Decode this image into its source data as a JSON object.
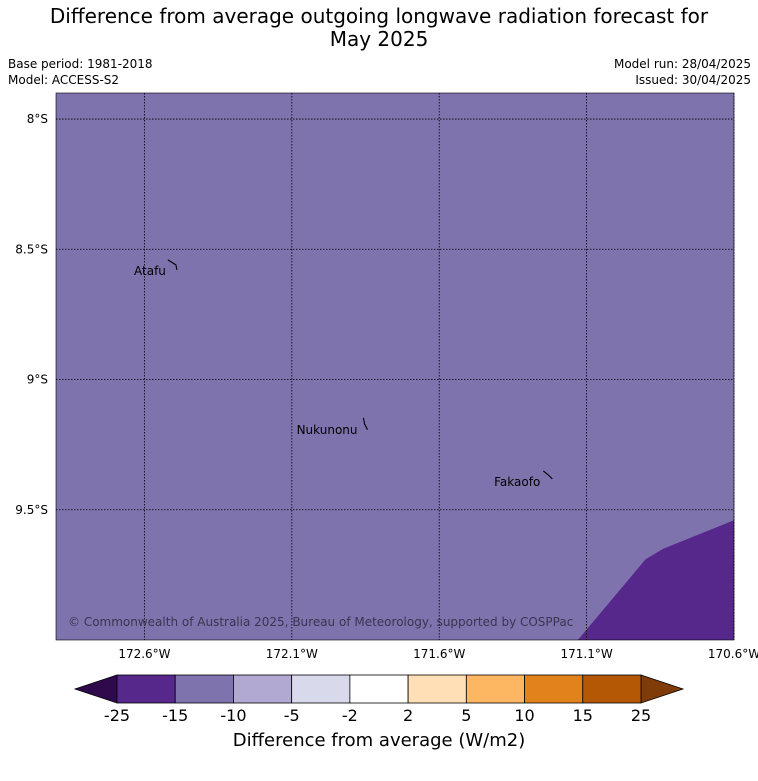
{
  "title_line1": "Difference from average outgoing longwave radiation forecast for",
  "title_line2": "May 2025",
  "base_period": "Base period: 1981-2018",
  "model": "Model: ACCESS-S2",
  "model_run": "Model run: 28/04/2025",
  "issued": "Issued: 30/04/2025",
  "copyright": "© Commonwealth of Australia 2025, Bureau of Meteorology, supported by COSPPac",
  "map": {
    "lon_range": [
      -172.9,
      -170.6
    ],
    "lat_range": [
      -10.0,
      -7.9
    ],
    "background_category": "-15 to -10",
    "lon_ticks": [
      {
        "value": -172.6,
        "label": "172.6°W"
      },
      {
        "value": -172.1,
        "label": "172.1°W"
      },
      {
        "value": -171.6,
        "label": "171.6°W"
      },
      {
        "value": -171.1,
        "label": "171.1°W"
      },
      {
        "value": -170.6,
        "label": "170.6°W"
      }
    ],
    "lat_ticks": [
      {
        "value": -8.0,
        "label": "8°S"
      },
      {
        "value": -8.5,
        "label": "8.5°S"
      },
      {
        "value": -9.0,
        "label": "9°S"
      },
      {
        "value": -9.5,
        "label": "9.5°S"
      }
    ],
    "places": [
      {
        "name": "Atafu",
        "lon": -172.5,
        "lat": -8.56
      },
      {
        "name": "Nukunonu",
        "lon": -171.85,
        "lat": -9.17
      },
      {
        "name": "Fakaofo",
        "lon": -171.23,
        "lat": -9.37
      }
    ],
    "region_below_minus15": [
      [
        -170.6,
        -9.54
      ],
      [
        -170.84,
        -9.65
      ],
      [
        -170.9,
        -9.69
      ],
      [
        -171.13,
        -10.0
      ],
      [
        -170.6,
        -10.0
      ]
    ]
  },
  "colorbar": {
    "label": "Difference from average (W/m2)",
    "boundaries": [
      "-25",
      "-15",
      "-10",
      "-5",
      "-2",
      "2",
      "5",
      "10",
      "15",
      "25"
    ],
    "colors": [
      "#56288c",
      "#7f73ad",
      "#b2a9d2",
      "#d9d9ec",
      "#ffffff",
      "#ffdfb5",
      "#fdb762",
      "#e2821b",
      "#b55806"
    ],
    "under_color": "#2e0a4d",
    "over_color": "#7f3b08"
  }
}
